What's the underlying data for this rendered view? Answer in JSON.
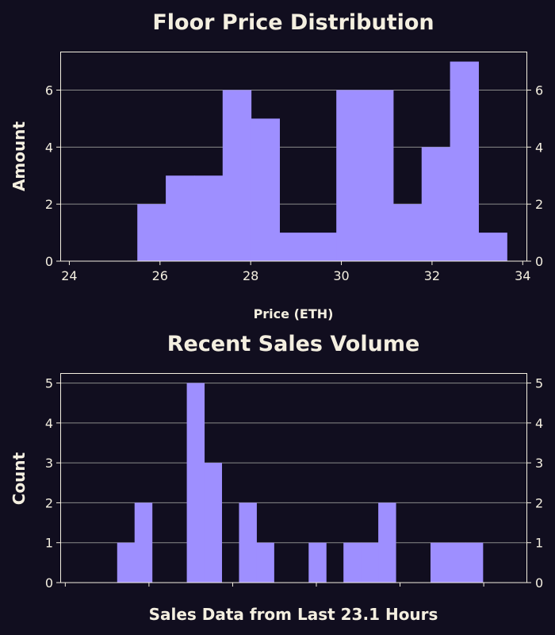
{
  "colors": {
    "background": "#110e1f",
    "bar": "#9e8fff",
    "text": "#f4efe0",
    "grid": "#8a8a8a",
    "frame": "#f4efe0"
  },
  "chart_data": [
    {
      "type": "bar",
      "subtype": "histogram",
      "title": "Floor Price Distribution",
      "xlabel": "Price (ETH)",
      "ylabel": "Amount",
      "xlim": [
        23.8,
        34.1
      ],
      "ylim": [
        0,
        7.35
      ],
      "xticks": [
        24,
        26,
        28,
        30,
        32,
        34
      ],
      "yticks": [
        0,
        2,
        4,
        6
      ],
      "y_ticks_mirrored_right": true,
      "grid": "y",
      "legend": "none",
      "bin_start": 25.5,
      "bin_width": 0.627,
      "values": [
        2,
        3,
        3,
        6,
        5,
        1,
        1,
        6,
        6,
        2,
        4,
        7,
        1
      ]
    },
    {
      "type": "bar",
      "subtype": "histogram",
      "title": "Recent Sales Volume",
      "xlabel": "Sales Data from Last 23.1 Hours",
      "ylabel": "Count",
      "xlim": [
        -0.3,
        27.6
      ],
      "ylim": [
        0,
        5.25
      ],
      "xticks_unlabeled": [
        0,
        5,
        10,
        15,
        20,
        25
      ],
      "yticks": [
        0,
        1,
        2,
        3,
        4,
        5
      ],
      "y_ticks_mirrored_right": true,
      "grid": "y",
      "legend": "none",
      "bin_start": 3.1,
      "bin_width": 1.04,
      "values": [
        1,
        2,
        0,
        0,
        5,
        3,
        0,
        2,
        1,
        0,
        0,
        1,
        0,
        1,
        1,
        2,
        0,
        0,
        1,
        1,
        1
      ]
    }
  ]
}
